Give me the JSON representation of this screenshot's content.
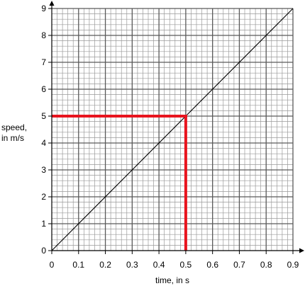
{
  "chart_data": {
    "type": "line",
    "title": "",
    "xlabel": "time, in s",
    "ylabel_lines": [
      "speed,",
      "in m/s"
    ],
    "xlim": [
      0,
      0.9
    ],
    "ylim": [
      0,
      9
    ],
    "x_ticks": [
      "0",
      "0.1",
      "0.2",
      "0.3",
      "0.4",
      "0.5",
      "0.6",
      "0.7",
      "0.8",
      "0.9"
    ],
    "y_ticks": [
      "0",
      "1",
      "2",
      "3",
      "4",
      "5",
      "6",
      "7",
      "8",
      "9"
    ],
    "grid": {
      "major_step_x": 0.1,
      "minor_step_x": 0.02,
      "major_step_y": 1,
      "minor_step_y": 0.2
    },
    "series": [
      {
        "x": [
          0,
          0.9
        ],
        "y": [
          0,
          9
        ],
        "color": "#000000"
      }
    ],
    "reading_lines": {
      "color": "#e8141e",
      "point": {
        "x": 0.5,
        "y": 5
      }
    }
  }
}
